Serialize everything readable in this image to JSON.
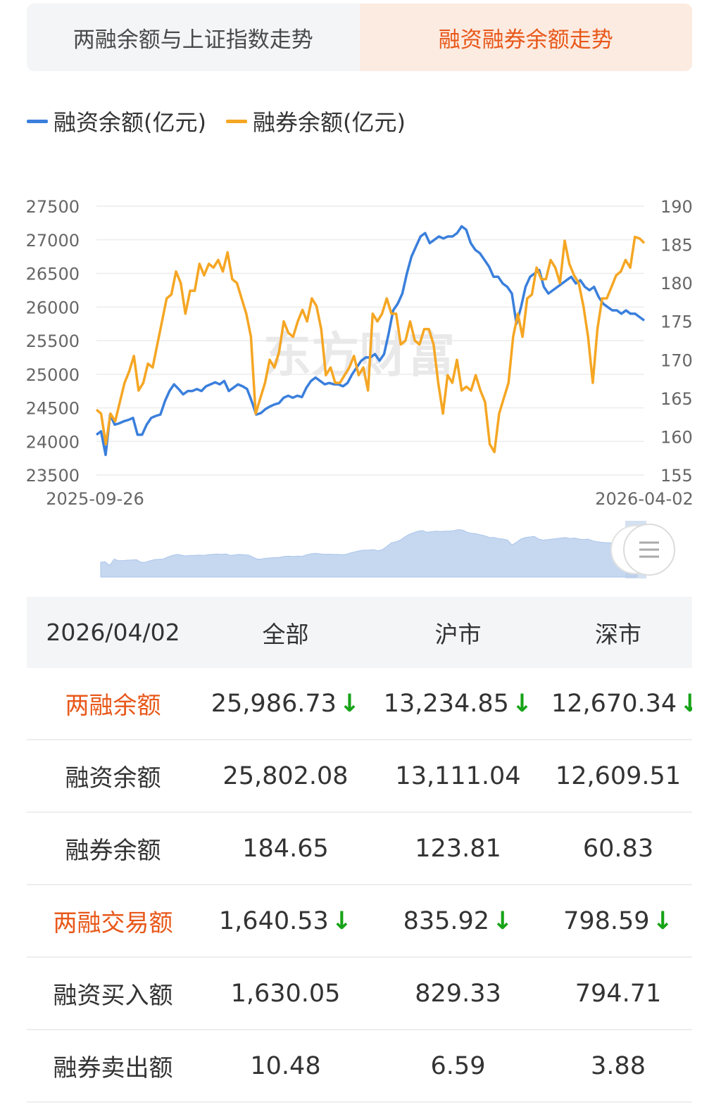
{
  "tabs": [
    {
      "label": "两融余额与上证指数走势",
      "active": false
    },
    {
      "label": "融资融券余额走势",
      "active": true
    }
  ],
  "colors": {
    "financing": "#3a7fdc",
    "securities_lending": "#f5a623",
    "accent": "#e8581a",
    "down_arrow": "#17a317"
  },
  "legend": [
    {
      "label": "融资余额(亿元)",
      "color": "#3a7fdc"
    },
    {
      "label": "融券余额(亿元)",
      "color": "#f5a623"
    }
  ],
  "chart_data": {
    "type": "line",
    "x_start_label": "2025-09-26",
    "x_end_label": "2026-04-02",
    "left_axis": {
      "ylim": [
        23500,
        27500
      ],
      "ticks": [
        "27500",
        "27000",
        "26500",
        "26000",
        "25500",
        "25000",
        "24500",
        "24000",
        "23500"
      ]
    },
    "right_axis": {
      "ylim": [
        155,
        190
      ],
      "ticks": [
        "190",
        "185",
        "180",
        "175",
        "170",
        "165",
        "160",
        "155"
      ]
    },
    "grid": true,
    "legend_position": "top-left",
    "series": [
      {
        "name": "融资余额(亿元)",
        "axis": "left",
        "color": "#3a7fdc",
        "values": [
          24100,
          24150,
          23800,
          24400,
          24250,
          24270,
          24300,
          24320,
          24350,
          24100,
          24100,
          24250,
          24350,
          24380,
          24400,
          24600,
          24750,
          24850,
          24780,
          24700,
          24750,
          24750,
          24780,
          24750,
          24820,
          24850,
          24880,
          24850,
          24900,
          24750,
          24800,
          24850,
          24820,
          24780,
          24600,
          24400,
          24420,
          24480,
          24520,
          24550,
          24570,
          24650,
          24680,
          24650,
          24680,
          24660,
          24800,
          24900,
          24950,
          24900,
          24850,
          24870,
          24850,
          24850,
          24820,
          24870,
          25000,
          25100,
          25200,
          25250,
          25250,
          25300,
          25200,
          25300,
          25600,
          25950,
          26050,
          26200,
          26500,
          26750,
          26900,
          27050,
          27100,
          26950,
          27000,
          27050,
          27020,
          27050,
          27050,
          27100,
          27200,
          27150,
          26950,
          26850,
          26800,
          26700,
          26600,
          26450,
          26450,
          26350,
          26300,
          26200,
          25750,
          26000,
          26300,
          26450,
          26500,
          26550,
          26300,
          26200,
          26250,
          26300,
          26350,
          26400,
          26450,
          26350,
          26400,
          26300,
          26250,
          26300,
          26150,
          26050,
          26000,
          25950,
          25950,
          25900,
          25950,
          25900,
          25900,
          25850,
          25800
        ]
      },
      {
        "name": "融券余额(亿元)",
        "axis": "right",
        "color": "#f5a623",
        "values": [
          163.5,
          163,
          159,
          163,
          162,
          164.5,
          167,
          168.5,
          170.5,
          166,
          167,
          169.5,
          169,
          172,
          175,
          178,
          178.5,
          181.5,
          180,
          176,
          179,
          179,
          182.5,
          181,
          182.5,
          182,
          183,
          181.5,
          184,
          180.5,
          180,
          178,
          176,
          173,
          163,
          165,
          167,
          170,
          169,
          171,
          175,
          173.5,
          173,
          175,
          176.5,
          175,
          178,
          177,
          174,
          168,
          169,
          167,
          167,
          168,
          169,
          170.5,
          168,
          169,
          166,
          176,
          175,
          176,
          178,
          176,
          176,
          172,
          172.5,
          175,
          172.5,
          172,
          174,
          174,
          172,
          167,
          163,
          168,
          167,
          170,
          166,
          166.5,
          166,
          168,
          166,
          164.5,
          159,
          158,
          163,
          165,
          167,
          173,
          176,
          173,
          178,
          178.5,
          182,
          180.5,
          180.5,
          183,
          182,
          180,
          185.5,
          182.5,
          181,
          180,
          177,
          173,
          167,
          174,
          178,
          178,
          179.5,
          181,
          181.5,
          183,
          182,
          186,
          185.8,
          185.2
        ]
      }
    ]
  },
  "watermark": "东方财富",
  "table": {
    "header": {
      "date": "2026/04/02",
      "all": "全部",
      "sh": "沪市",
      "sz": "深市"
    },
    "rows": [
      {
        "label": "两融余额",
        "accent": true,
        "all": "25,986.73",
        "sh": "13,234.85",
        "sz": "12,670.34",
        "arrows": true
      },
      {
        "label": "融资余额",
        "accent": false,
        "all": "25,802.08",
        "sh": "13,111.04",
        "sz": "12,609.51",
        "arrows": false
      },
      {
        "label": "融券余额",
        "accent": false,
        "all": "184.65",
        "sh": "123.81",
        "sz": "60.83",
        "arrows": false
      },
      {
        "label": "两融交易额",
        "accent": true,
        "all": "1,640.53",
        "sh": "835.92",
        "sz": "798.59",
        "arrows": true
      },
      {
        "label": "融资买入额",
        "accent": false,
        "all": "1,630.05",
        "sh": "829.33",
        "sz": "794.71",
        "arrows": false
      },
      {
        "label": "融券卖出额",
        "accent": false,
        "all": "10.48",
        "sh": "6.59",
        "sz": "3.88",
        "arrows": false
      }
    ]
  }
}
